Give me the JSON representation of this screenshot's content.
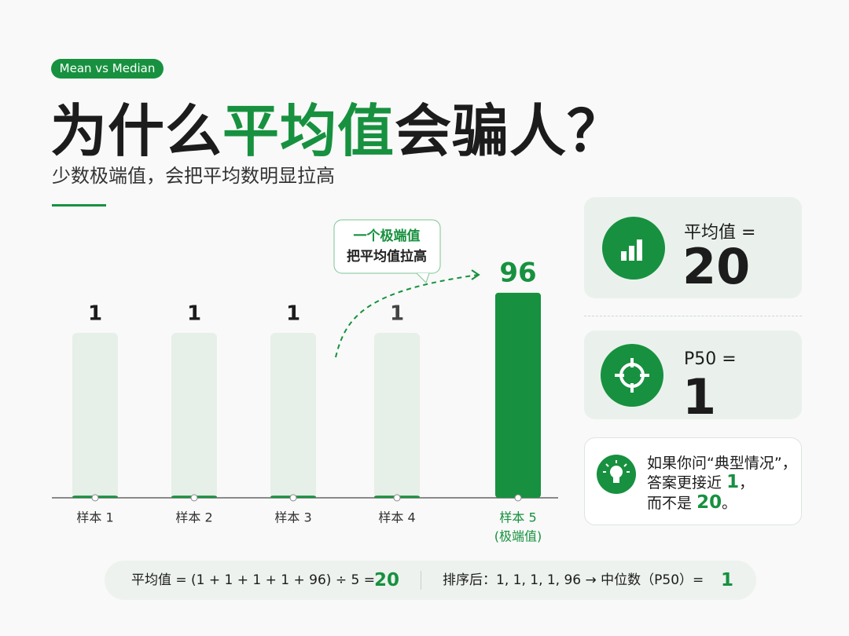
{
  "badge": "Mean vs Median",
  "title": {
    "part1": "为什么",
    "highlight": "平均值",
    "part2": "会骗人？"
  },
  "subtitle": "少数极端值，会把平均数明显拉高",
  "chart_data": {
    "type": "bar",
    "categories": [
      "样本 1",
      "样本 2",
      "样本 3",
      "样本 4",
      "样本 5"
    ],
    "values": [
      1,
      1,
      1,
      1,
      96
    ],
    "color": "#17913f",
    "highlight_color": "#17913f",
    "ylim": [
      0,
      100
    ],
    "category_note": "(极端值)",
    "annotation": [
      "一个极端值",
      "把平均值拉高"
    ]
  },
  "cards": [
    {
      "label": "平均值 =",
      "value": "20"
    },
    {
      "label": "P50 =",
      "value": "1"
    }
  ],
  "tip": {
    "line1": "如果你问“典型情况”，",
    "line2": [
      "答案更接近",
      "1",
      "，"
    ],
    "line3": [
      "而不是",
      "20",
      "。"
    ]
  },
  "footer": {
    "mean_formula": "平均值 = (1 + 1 + 1 + 1 + 96) ÷ 5 =",
    "mean_result": "20",
    "median_formula": "排序后：1, 1, 1, 1, 96 → 中位数（P50）=",
    "median_result": "1"
  }
}
